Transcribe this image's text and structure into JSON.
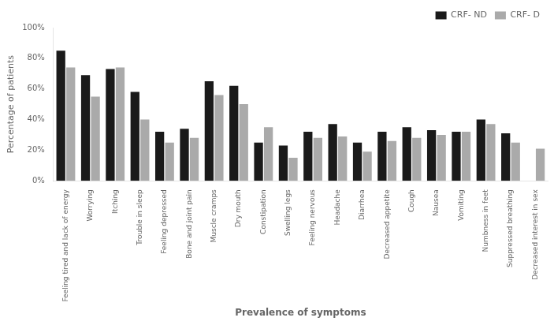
{
  "chart_data": {
    "type": "bar",
    "categories": [
      "Feeling tired and lack of energy",
      "Worrying",
      "Itching",
      "Trouble in sleep",
      "Feeling depressed",
      "Bone and joint pain",
      "Muscle cramps",
      "Dry mouth",
      "Constipation",
      "Swelling legs",
      "Feeling nervous",
      "Headache",
      "Diarrhea",
      "Decreased appetite",
      "Cough",
      "Nausea",
      "Vomiting",
      "Numbness in feet",
      "Suppressed breathing",
      "Decreased interest in sex"
    ],
    "series": [
      {
        "name": "CRF- ND",
        "color": "#1a1a1a",
        "values": [
          85,
          69,
          73,
          58,
          32,
          34,
          65,
          62,
          25,
          23,
          32,
          37,
          25,
          32,
          35,
          33,
          32,
          40,
          31,
          0
        ]
      },
      {
        "name": "CRF- D",
        "color": "#aaaaaa",
        "values": [
          74,
          55,
          74,
          40,
          25,
          28,
          56,
          50,
          35,
          15,
          28,
          29,
          19,
          26,
          28,
          30,
          32,
          37,
          25,
          21
        ]
      }
    ],
    "xlabel": "Prevalence of symptoms",
    "ylabel": "Percentage of patients",
    "ylim": [
      0,
      100
    ],
    "yticks": [
      {
        "value": 0,
        "label": "0%"
      },
      {
        "value": 20,
        "label": "20%"
      },
      {
        "value": 40,
        "label": "40%"
      },
      {
        "value": 60,
        "label": "60%"
      },
      {
        "value": 80,
        "label": "80%"
      },
      {
        "value": 100,
        "label": "100%"
      }
    ],
    "grid": false,
    "legend": "upper right"
  }
}
